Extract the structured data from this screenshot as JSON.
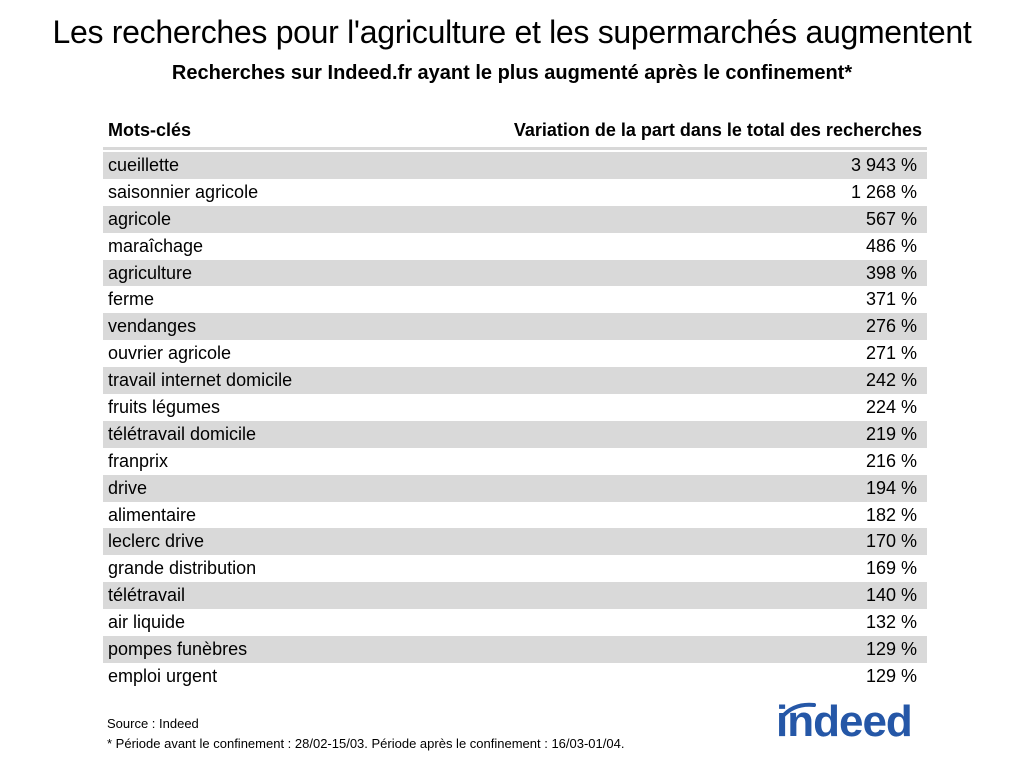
{
  "title": "Les recherches pour l'agriculture et les supermarchés augmentent",
  "subtitle": "Recherches sur Indeed.fr ayant le plus augmenté après le confinement*",
  "chart_data": {
    "type": "table",
    "columns": [
      "Mots-clés",
      "Variation de la part dans le total des recherches"
    ],
    "rows": [
      {
        "keyword": "cueillette",
        "value": "3 943 %"
      },
      {
        "keyword": "saisonnier agricole",
        "value": "1 268 %"
      },
      {
        "keyword": "agricole",
        "value": "567 %"
      },
      {
        "keyword": "maraîchage",
        "value": "486 %"
      },
      {
        "keyword": "agriculture",
        "value": "398 %"
      },
      {
        "keyword": "ferme",
        "value": "371 %"
      },
      {
        "keyword": "vendanges",
        "value": "276 %"
      },
      {
        "keyword": "ouvrier agricole",
        "value": "271 %"
      },
      {
        "keyword": "travail internet domicile",
        "value": "242 %"
      },
      {
        "keyword": "fruits légumes",
        "value": "224 %"
      },
      {
        "keyword": "télétravail domicile",
        "value": "219 %"
      },
      {
        "keyword": "franprix",
        "value": "216 %"
      },
      {
        "keyword": "drive",
        "value": "194 %"
      },
      {
        "keyword": "alimentaire",
        "value": "182 %"
      },
      {
        "keyword": "leclerc drive",
        "value": "170 %"
      },
      {
        "keyword": "grande distribution",
        "value": "169 %"
      },
      {
        "keyword": "télétravail",
        "value": "140 %"
      },
      {
        "keyword": "air liquide",
        "value": "132 %"
      },
      {
        "keyword": "pompes funèbres",
        "value": "129 %"
      },
      {
        "keyword": "emploi urgent",
        "value": "129 %"
      }
    ],
    "row_shading": "alternating"
  },
  "footnotes": {
    "source": "Source : Indeed",
    "note": "* Période avant le confinement : 28/02-15/03. Période après le confinement : 16/03-01/04."
  },
  "logo": {
    "text": "indeed",
    "color": "#2557a7"
  },
  "colors": {
    "shaded_row": "#d9d9d9",
    "text": "#000000"
  }
}
